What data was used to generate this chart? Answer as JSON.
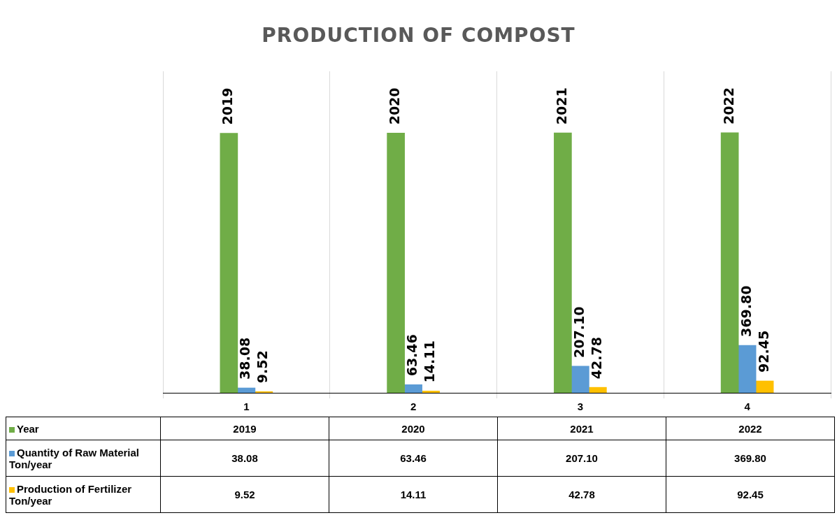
{
  "chart_data": {
    "type": "bar",
    "title": "PRODUCTION OF COMPOST",
    "categories": [
      "1",
      "2",
      "3",
      "4"
    ],
    "series": [
      {
        "name": "Year",
        "color": "#70ad47",
        "values": [
          2019,
          2020,
          2021,
          2022
        ],
        "value_labels": [
          "2019",
          "2020",
          "2021",
          "2022"
        ]
      },
      {
        "name": "Quantity of Raw Material Ton/year",
        "color": "#5b9bd5",
        "values": [
          38.08,
          63.46,
          207.1,
          369.8
        ],
        "value_labels": [
          "38.08",
          "63.46",
          "207.10",
          "369.80"
        ]
      },
      {
        "name": "Production of Fertilizer Ton/year",
        "color": "#ffc000",
        "values": [
          9.52,
          14.11,
          42.78,
          92.45
        ],
        "value_labels": [
          "9.52",
          "14.11",
          "42.78",
          "92.45"
        ]
      }
    ],
    "ylim": [
      0,
      2500
    ],
    "grid": "x",
    "legend": "bottom"
  }
}
